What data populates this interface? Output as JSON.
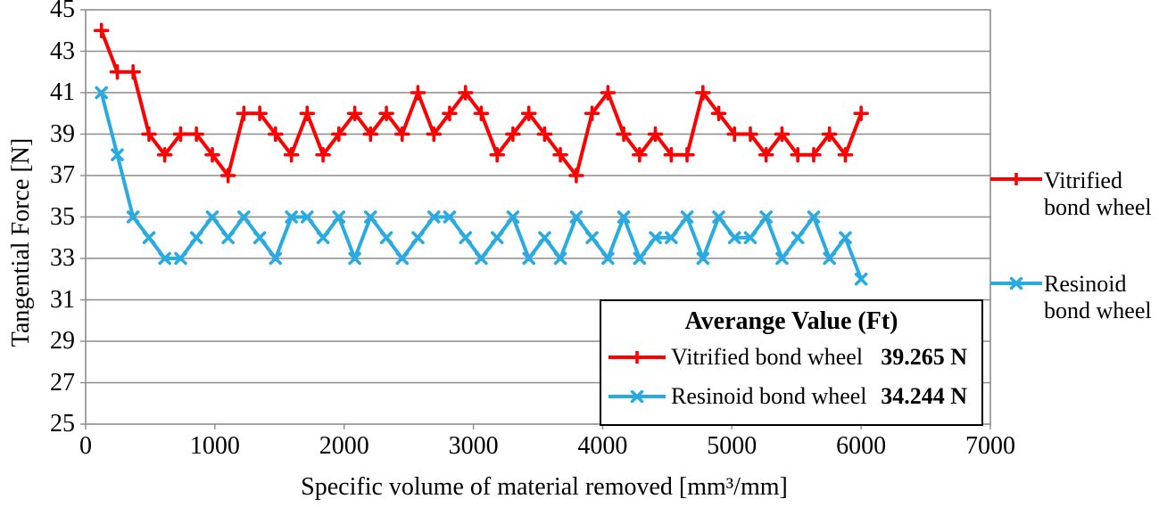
{
  "chart_data": {
    "type": "line",
    "title": "",
    "xlabel": "Specific volume of material removed [mm³/mm]",
    "ylabel": "Tangential Force [N]",
    "xlim": [
      0,
      7000
    ],
    "ylim": [
      25,
      45
    ],
    "x_ticks": [
      0,
      1000,
      2000,
      3000,
      4000,
      5000,
      6000,
      7000
    ],
    "y_ticks": [
      25,
      27,
      29,
      31,
      33,
      35,
      37,
      39,
      41,
      43,
      45
    ],
    "grid": "horizontal-only",
    "legend_position": "right",
    "x": [
      122,
      245,
      367,
      490,
      612,
      735,
      857,
      980,
      1102,
      1224,
      1347,
      1469,
      1592,
      1714,
      1837,
      1959,
      2082,
      2204,
      2327,
      2449,
      2571,
      2694,
      2816,
      2939,
      3061,
      3184,
      3306,
      3429,
      3551,
      3673,
      3796,
      3918,
      4041,
      4163,
      4286,
      4408,
      4531,
      4653,
      4776,
      4898,
      5020,
      5143,
      5265,
      5388,
      5510,
      5633,
      5755,
      5878,
      6000
    ],
    "series": [
      {
        "name": "Vitrified bond wheel",
        "color": "#FF0000",
        "marker": "plus",
        "average_label": "39.265 N",
        "values": [
          44,
          42,
          42,
          39,
          38,
          39,
          39,
          38,
          37,
          40,
          40,
          39,
          38,
          40,
          38,
          39,
          40,
          39,
          40,
          39,
          41,
          39,
          40,
          41,
          40,
          38,
          39,
          40,
          39,
          38,
          37,
          40,
          41,
          39,
          38,
          39,
          38,
          38,
          41,
          40,
          39,
          39,
          38,
          39,
          38,
          38,
          39,
          38,
          40
        ]
      },
      {
        "name": "Resinoid bond wheel",
        "color": "#29ABE2",
        "marker": "x",
        "average_label": "34.244 N",
        "values": [
          41,
          38,
          35,
          34,
          33,
          33,
          34,
          35,
          34,
          35,
          34,
          33,
          35,
          35,
          34,
          35,
          33,
          35,
          34,
          33,
          34,
          35,
          35,
          34,
          33,
          34,
          35,
          33,
          34,
          33,
          35,
          34,
          33,
          35,
          33,
          34,
          34,
          35,
          33,
          35,
          34,
          34,
          35,
          33,
          34,
          35,
          33,
          34,
          32
        ]
      }
    ]
  },
  "legend": {
    "entries": [
      {
        "line1": "Vitrified",
        "line2": "bond wheel"
      },
      {
        "line1": "Resinoid",
        "line2": "bond wheel"
      }
    ]
  },
  "avg_box": {
    "title": "Averange Value (Ft)",
    "rows": [
      {
        "name": "Vitrified bond wheel",
        "value": "39.265 N"
      },
      {
        "name": "Resinoid bond wheel",
        "value": "34.244 N"
      }
    ]
  },
  "colors": {
    "vitrified": "#FF0000",
    "resinoid": "#29ABE2",
    "gridline": "#8C8C8C",
    "plot_border": "#8C8C8C",
    "text": "#000000",
    "avg_box_border": "#000000"
  }
}
